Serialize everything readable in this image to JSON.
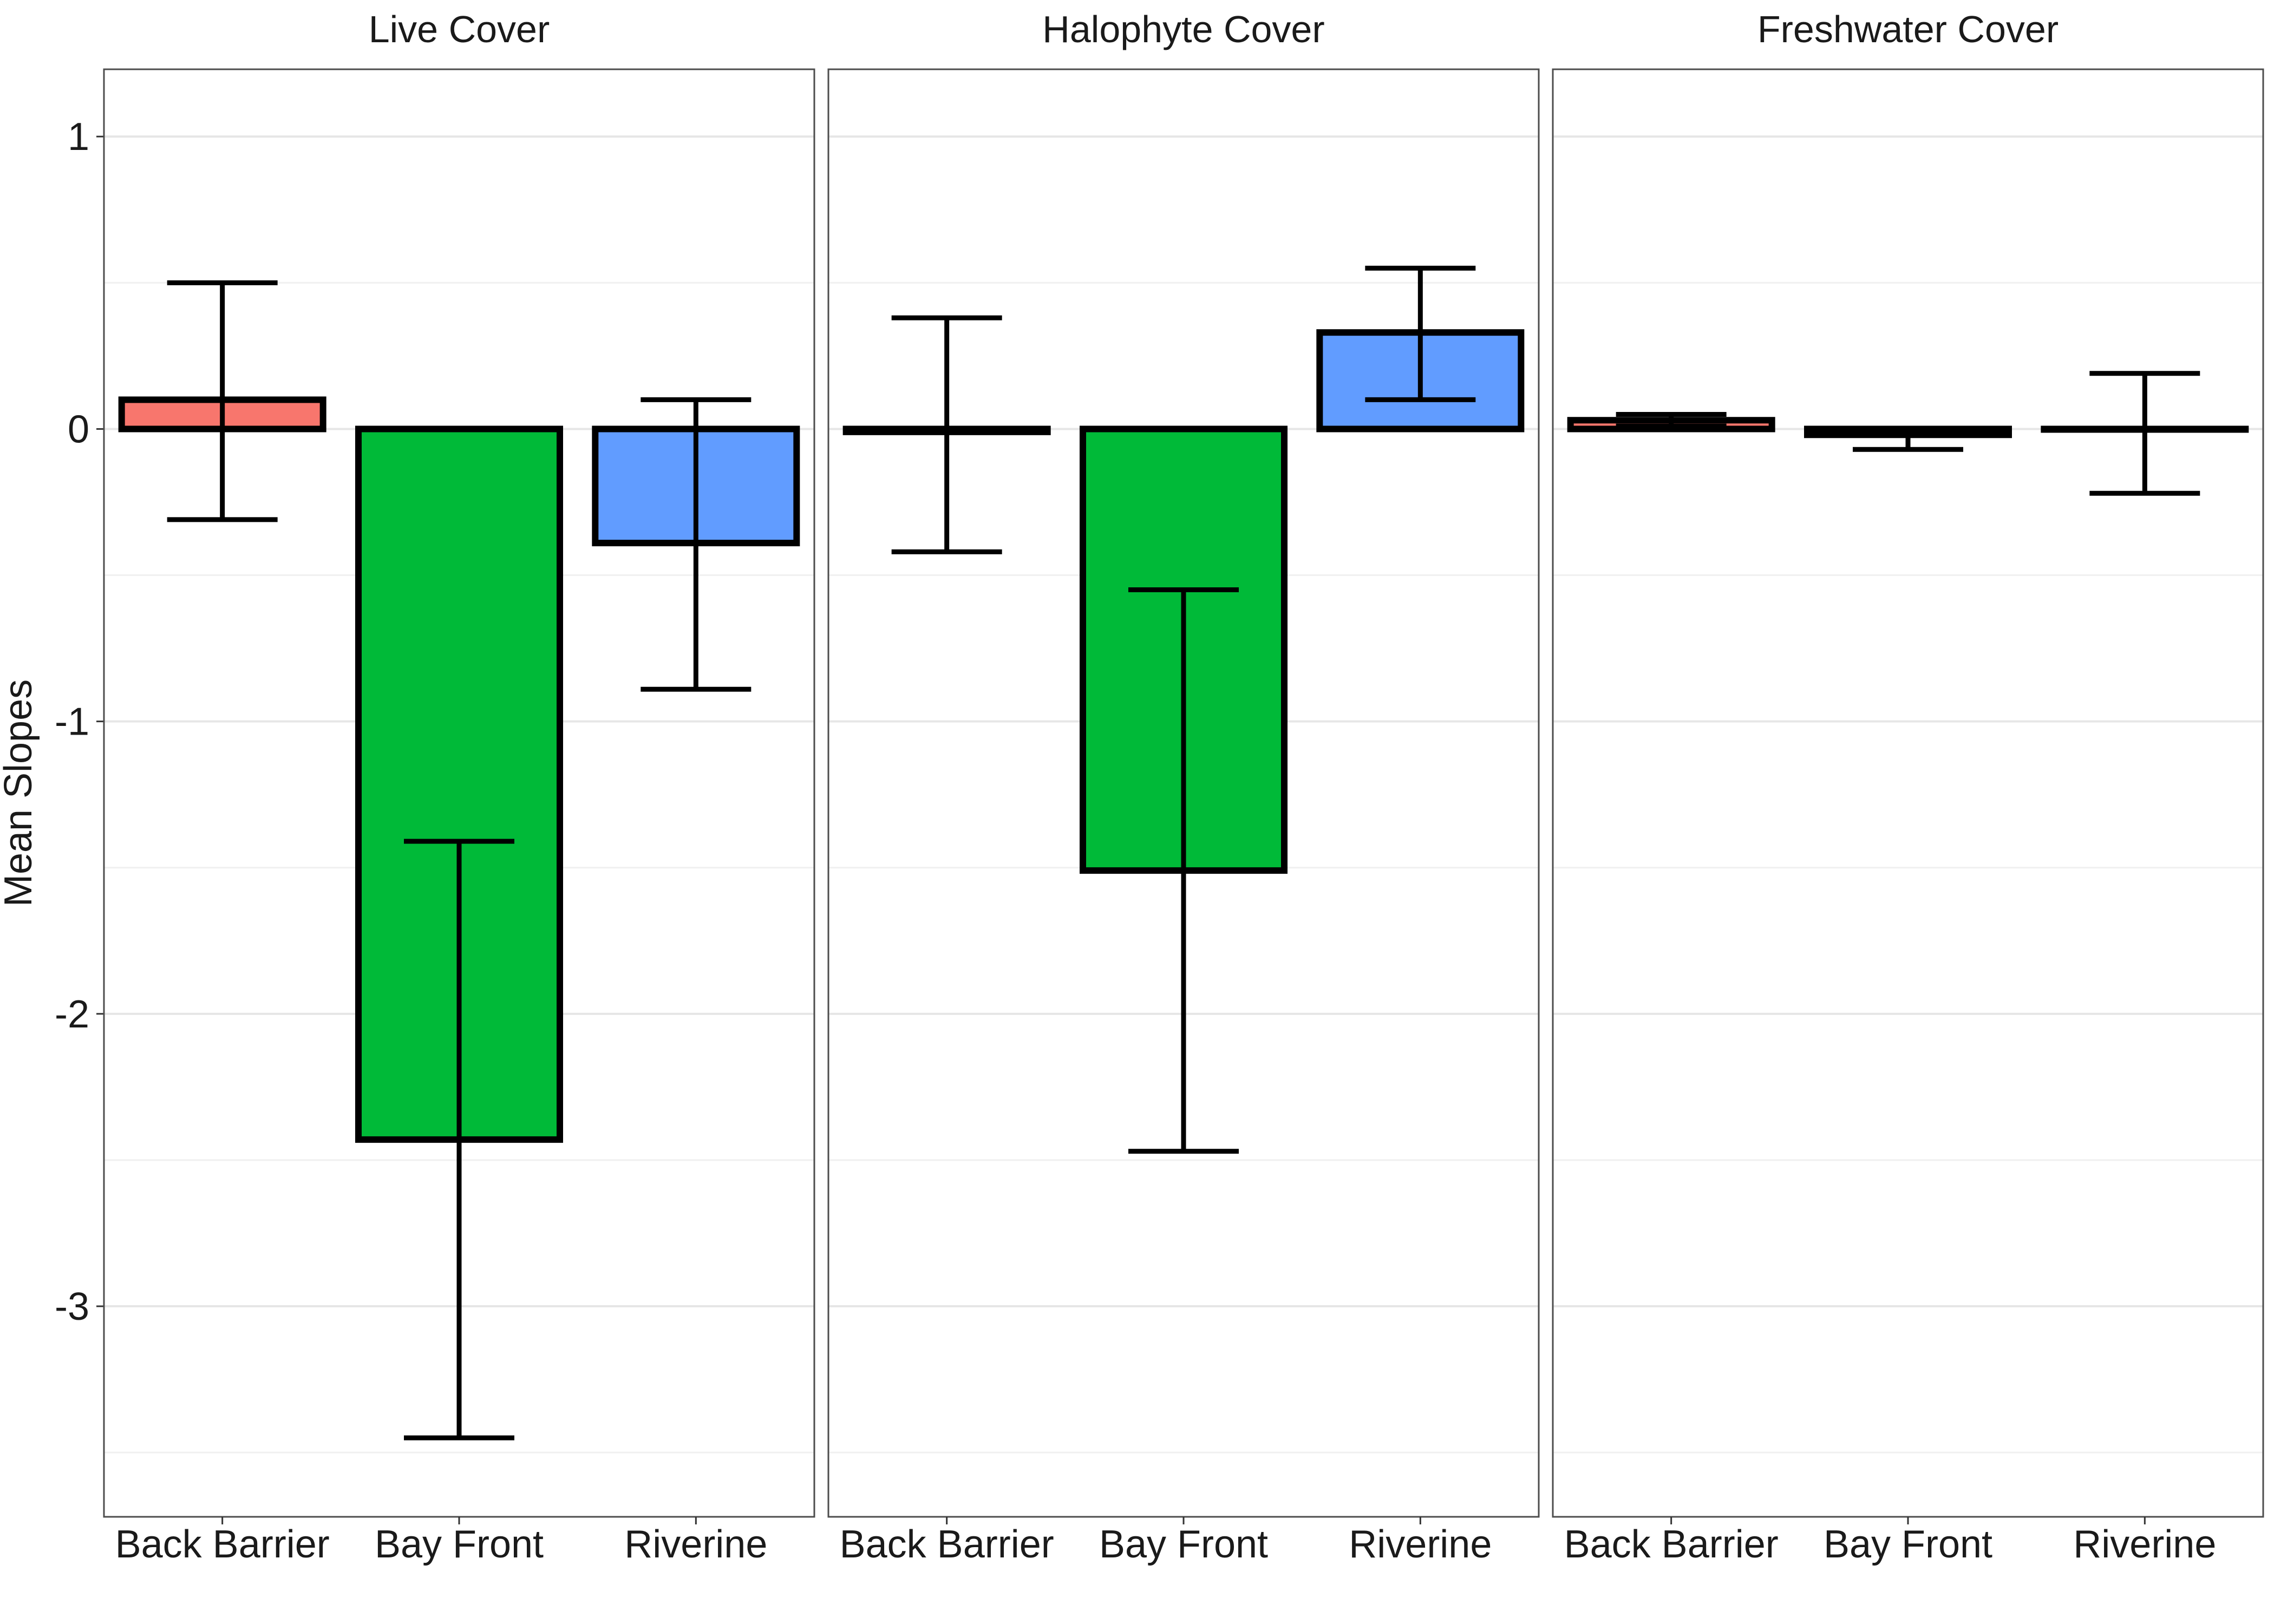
{
  "chart_data": {
    "type": "bar",
    "ylabel": "Mean Slopes",
    "xlabel": "",
    "ylim": [
      -3.72,
      1.23
    ],
    "y_ticks": [
      1,
      0,
      -1,
      -2,
      -3
    ],
    "y_tick_labels": [
      "1",
      "0",
      "-1",
      "-2",
      "-3"
    ],
    "grid": true,
    "categories": [
      "Back Barrier",
      "Bay Front",
      "Riverine"
    ],
    "colors": {
      "Back Barrier": "#F8766D",
      "Bay Front": "#00BA38",
      "Riverine": "#619CFF"
    },
    "panels": [
      {
        "title": "Live Cover",
        "values": [
          0.1,
          -2.43,
          -0.39
        ],
        "error_low": [
          -0.31,
          -3.45,
          -0.89
        ],
        "error_high": [
          0.5,
          -1.41,
          0.1
        ]
      },
      {
        "title": "Halophyte Cover",
        "values": [
          -0.01,
          -1.51,
          0.33
        ],
        "error_low": [
          -0.42,
          -2.47,
          0.1
        ],
        "error_high": [
          0.38,
          -0.55,
          0.55
        ]
      },
      {
        "title": "Freshwater Cover",
        "values": [
          0.03,
          -0.02,
          0.0
        ],
        "error_low": [
          0.01,
          -0.07,
          -0.22
        ],
        "error_high": [
          0.05,
          0.0,
          0.19
        ]
      }
    ]
  }
}
